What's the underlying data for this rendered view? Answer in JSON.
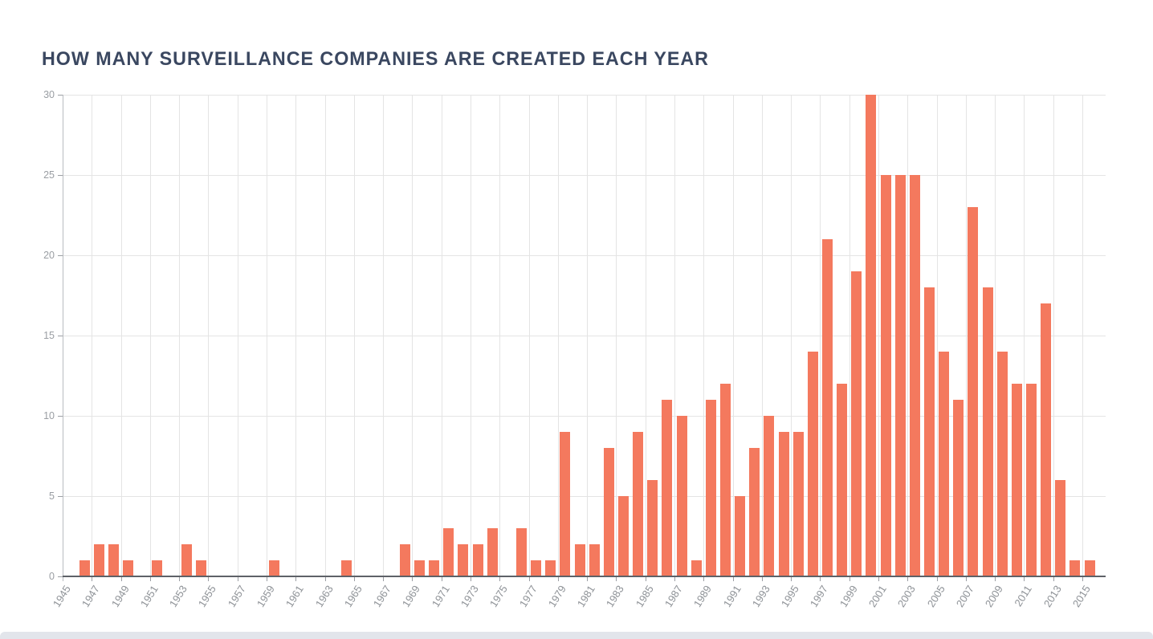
{
  "page": {
    "background": "#ffffff",
    "bottom_band_color": "#e2e5eb"
  },
  "chart_data": {
    "type": "bar",
    "title": "HOW MANY SURVEILLANCE COMPANIES ARE CREATED EACH YEAR",
    "xlabel": "",
    "ylabel": "",
    "x": [
      1946,
      1947,
      1948,
      1949,
      1950,
      1951,
      1952,
      1953,
      1954,
      1955,
      1956,
      1957,
      1958,
      1959,
      1960,
      1961,
      1962,
      1963,
      1964,
      1965,
      1966,
      1967,
      1968,
      1969,
      1970,
      1971,
      1972,
      1973,
      1974,
      1975,
      1976,
      1977,
      1978,
      1979,
      1980,
      1981,
      1982,
      1983,
      1984,
      1985,
      1986,
      1987,
      1988,
      1989,
      1990,
      1991,
      1992,
      1993,
      1994,
      1995,
      1996,
      1997,
      1998,
      1999,
      2000,
      2001,
      2002,
      2003,
      2004,
      2005,
      2006,
      2007,
      2008,
      2009,
      2010,
      2011,
      2012,
      2013,
      2014,
      2015
    ],
    "values": [
      1,
      2,
      2,
      1,
      0,
      1,
      0,
      2,
      1,
      0,
      0,
      0,
      0,
      1,
      0,
      0,
      0,
      0,
      1,
      0,
      0,
      0,
      2,
      1,
      1,
      3,
      2,
      2,
      3,
      0,
      3,
      1,
      1,
      9,
      2,
      2,
      8,
      5,
      9,
      6,
      11,
      10,
      1,
      11,
      12,
      5,
      8,
      10,
      9,
      9,
      14,
      21,
      12,
      19,
      30,
      25,
      25,
      25,
      18,
      14,
      11,
      23,
      18,
      14,
      12,
      12,
      17,
      6,
      1,
      1
    ],
    "x_tick_labels": [
      "1945",
      "1947",
      "1949",
      "1951",
      "1953",
      "1955",
      "1957",
      "1959",
      "1961",
      "1963",
      "1965",
      "1967",
      "1969",
      "1971",
      "1973",
      "1975",
      "1977",
      "1979",
      "1981",
      "1983",
      "1985",
      "1987",
      "1989",
      "1991",
      "1993",
      "1995",
      "1997",
      "1999",
      "2001",
      "2003",
      "2005",
      "2007",
      "2009",
      "2011",
      "2013",
      "2015"
    ],
    "y_ticks": [
      0,
      5,
      10,
      15,
      20,
      25,
      30
    ],
    "ylim": [
      0,
      30
    ],
    "xlim": [
      1945,
      2016.6
    ],
    "grid": true,
    "legend_position": "none",
    "bar_color": "#f4795e",
    "title_color": "#3a4760",
    "tick_label_color": "#8e9297",
    "y_label_color": "#9a9ea3",
    "gridline_color": "#e4e4e4",
    "baseline_color": "#5e6268",
    "axis_line_color": "#b9bcc1",
    "tick_mark_color": "#9b9ea3"
  }
}
